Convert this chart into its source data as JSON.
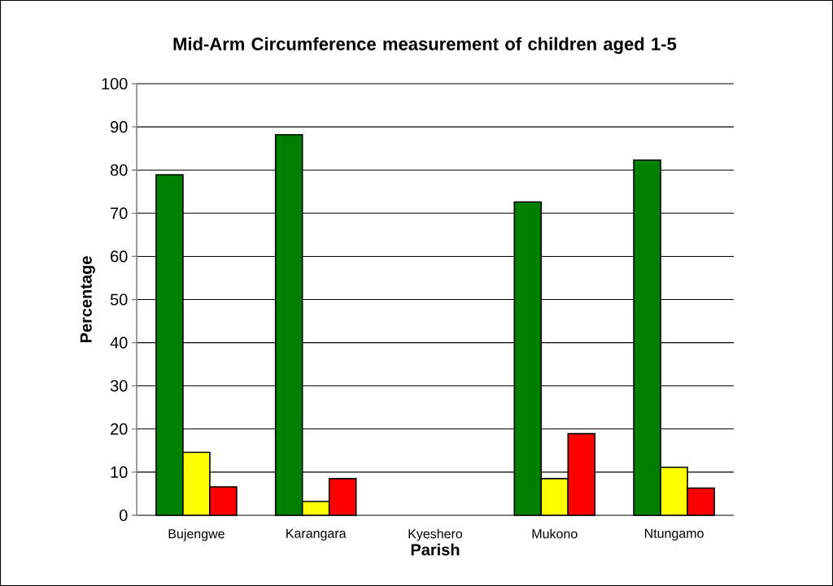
{
  "chart_data": {
    "type": "bar",
    "title": "Mid-Arm Circumference measurement of children aged 1-5",
    "xlabel": "Parish",
    "ylabel": "Percentage",
    "categories": [
      "Bujengwe",
      "Karangara",
      "Kyeshero",
      "Mukono",
      "Ntungamo"
    ],
    "series": [
      {
        "color": "#008000",
        "values": [
          78.9,
          88.2,
          null,
          72.6,
          82.3
        ]
      },
      {
        "color": "#ffff00",
        "values": [
          14.6,
          3.2,
          null,
          8.5,
          11.1
        ]
      },
      {
        "color": "#ff0000",
        "values": [
          6.6,
          8.5,
          null,
          18.9,
          6.3
        ]
      }
    ],
    "ylim": [
      0,
      100
    ],
    "yticks": [
      0,
      10,
      20,
      30,
      40,
      50,
      60,
      70,
      80,
      90,
      100
    ],
    "grid": "y"
  }
}
